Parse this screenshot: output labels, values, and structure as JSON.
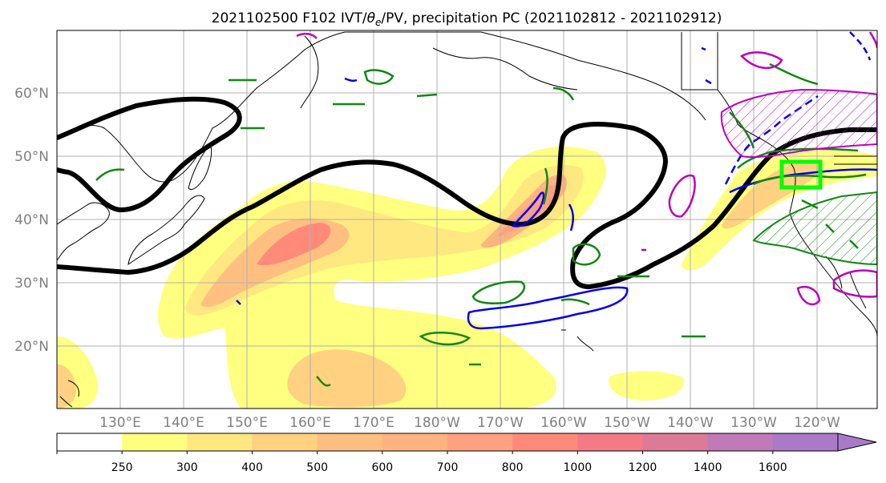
{
  "title": {
    "prefix": "2021102500 F102 IVT/",
    "theta": "θ",
    "sub": "e",
    "suffix": "/PV, precipitation PC (2021102812 - 2021102912)"
  },
  "map": {
    "lat_labels": [
      "60°N",
      "50°N",
      "40°N",
      "30°N",
      "20°N"
    ],
    "lon_labels": [
      "130°E",
      "140°E",
      "150°E",
      "160°E",
      "170°E",
      "180°W",
      "170°W",
      "160°W",
      "150°W",
      "140°W",
      "130°W",
      "120°W"
    ],
    "lat_range": [
      10,
      70
    ],
    "lon_range_east": [
      120,
      250
    ],
    "gridlines": true,
    "contours": [
      {
        "name": "ivt-shading",
        "color": "#FFEE66",
        "meaning": "IVT filled contours"
      },
      {
        "name": "theta-e",
        "color": "#000000"
      },
      {
        "name": "pv",
        "color": "#0000EE"
      },
      {
        "name": "precip-pc",
        "color": "#118811"
      },
      {
        "name": "wind",
        "color": "#BB00BB"
      }
    ],
    "highlight_box_color": "#00FF00"
  },
  "colorbar": {
    "ticks": [
      "250",
      "300",
      "400",
      "500",
      "600",
      "700",
      "800",
      "1000",
      "1200",
      "1400",
      "1600"
    ],
    "colors": [
      "#FFFFFF",
      "#FFFF80",
      "#FFE880",
      "#FFD180",
      "#FFBF80",
      "#FFB380",
      "#FFA080",
      "#FF8A7A",
      "#F47A85",
      "#DC7A98",
      "#C07AB8",
      "#A87AC8"
    ]
  }
}
